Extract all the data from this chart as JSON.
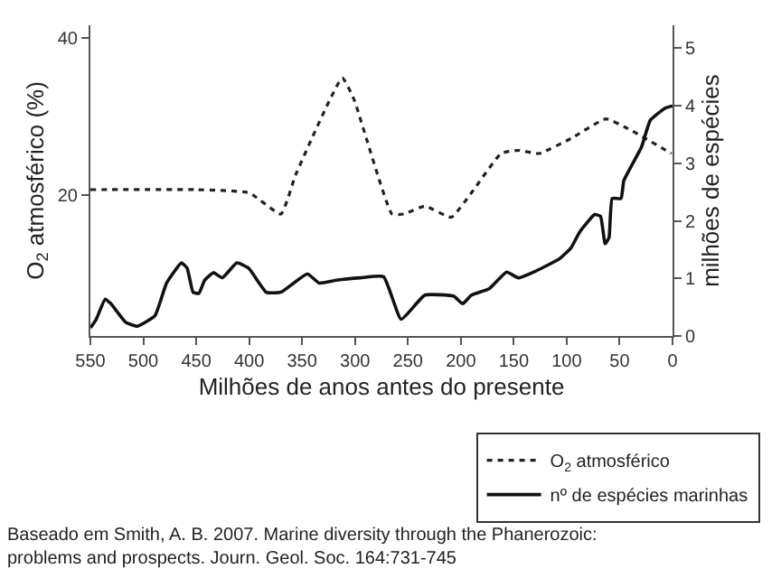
{
  "chart_data": {
    "type": "line",
    "xlabel": "Milhões de anos antes do presente",
    "ylabel": "O$_{2}$ atmosférico (%)",
    "y2label": "milhões de espécies",
    "xlim": [
      550,
      0
    ],
    "xticks": [
      550,
      500,
      450,
      400,
      350,
      300,
      250,
      200,
      150,
      100,
      50,
      0
    ],
    "ylim": [
      2.1,
      41.6
    ],
    "yticks": [
      20,
      40
    ],
    "y2lim": [
      0,
      5.4
    ],
    "y2ticks": [
      0,
      1,
      2,
      3,
      4,
      5
    ],
    "legend": "bottom right",
    "marker": "none",
    "series": [
      {
        "name": "O$_{2}$ atmosférico",
        "color": "#222222",
        "line_style": "dotted",
        "axis": "y",
        "x": [
          550,
          450,
          400,
          370,
          356,
          312,
          301,
          265,
          254,
          234,
          209,
          190,
          162,
          146,
          126,
          96,
          63,
          40,
          1
        ],
        "values": [
          20.7,
          20.7,
          20.3,
          17.6,
          22.6,
          34.9,
          32.2,
          17.6,
          17.6,
          18.6,
          17.2,
          20.3,
          25.3,
          25.7,
          25.3,
          27.2,
          29.7,
          28.3,
          25.3
        ]
      },
      {
        "name": "nº de espécies marinhas",
        "color": "#111111",
        "line_style": "solid",
        "axis": "y2",
        "x": [
          550,
          544.5,
          536,
          530.6,
          516.8,
          505.7,
          489,
          478,
          464,
          458.6,
          453,
          447.5,
          442,
          433.7,
          425.4,
          411.6,
          400.5,
          383.8,
          370,
          345,
          334,
          317.4,
          295,
          273,
          256.4,
          234,
          206.6,
          198.3,
          190,
          173.3,
          156.7,
          145.7,
          129,
          107,
          96,
          87.6,
          73.6,
          68,
          63.7,
          60,
          57,
          48.7,
          46,
          29.4,
          21,
          7,
          0
        ],
        "values": [
          0.14,
          0.29,
          0.64,
          0.56,
          0.24,
          0.17,
          0.35,
          0.92,
          1.27,
          1.18,
          0.76,
          0.74,
          0.97,
          1.1,
          1.01,
          1.27,
          1.18,
          0.76,
          0.76,
          1.08,
          0.92,
          0.97,
          1.01,
          1.03,
          0.29,
          0.71,
          0.69,
          0.56,
          0.71,
          0.82,
          1.11,
          1.01,
          1.13,
          1.34,
          1.53,
          1.81,
          2.11,
          2.08,
          1.6,
          1.71,
          2.39,
          2.39,
          2.7,
          3.28,
          3.75,
          3.96,
          4.0
        ]
      }
    ],
    "annotations": [
      "Baseado em Smith, A. B. 2007. Marine diversity through the Phanerozoic:\nproblems and prospects. Journ. Geol. Soc. 164:731-745"
    ]
  }
}
